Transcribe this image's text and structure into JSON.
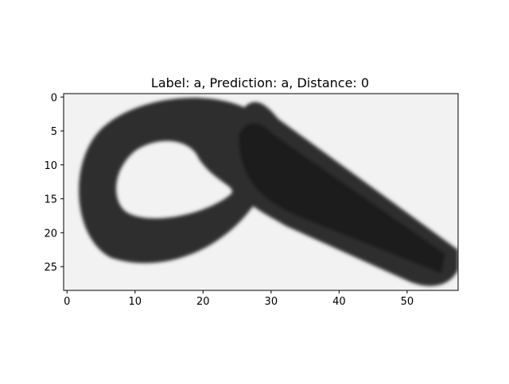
{
  "chart_data": {
    "type": "heatmap",
    "title": "Label: a, Prediction: a, Distance: 0",
    "xlabel": "",
    "ylabel": "",
    "colormap": "gray",
    "image_shape": [
      29,
      58
    ],
    "xlim": [
      -0.5,
      57.5
    ],
    "ylim": [
      28.5,
      -0.5
    ],
    "xticks": [
      0,
      10,
      20,
      30,
      40,
      50
    ],
    "yticks": [
      0,
      5,
      10,
      15,
      20,
      25
    ],
    "grid": false,
    "image_description": "grayscale image of a handwritten lowercase letter 'a' (dark strokes on a light background)"
  },
  "colors": {
    "background": "#f2f2f2",
    "ink": "#2f2f2f",
    "ink_dark": "#1f1f1f",
    "axis": "#000000"
  }
}
